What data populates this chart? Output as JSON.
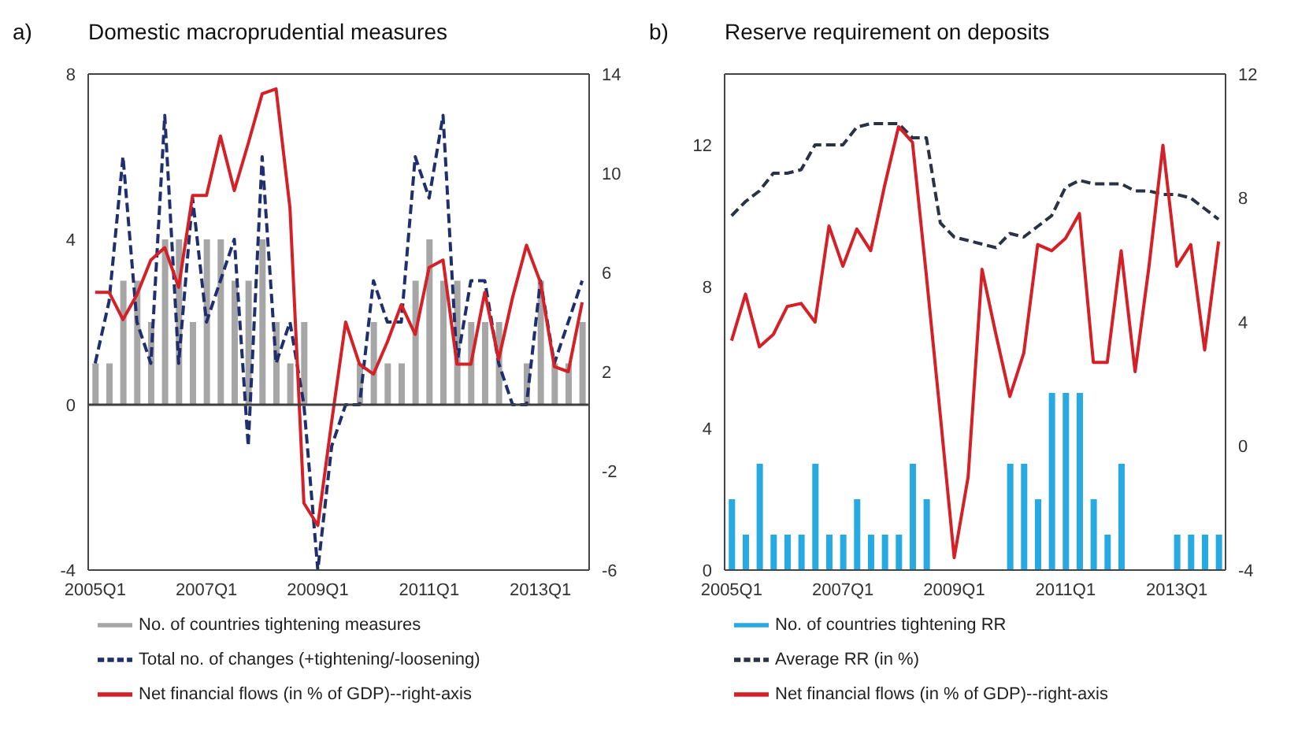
{
  "chart_data": [
    {
      "type": "bar",
      "title": "Domestic macroprudential measures",
      "annotations": [
        "a)"
      ],
      "categories": [
        "2005Q1",
        null,
        null,
        null,
        null,
        null,
        null,
        null,
        "2007Q1",
        null,
        null,
        null,
        null,
        null,
        null,
        null,
        "2009Q1",
        null,
        null,
        null,
        null,
        null,
        null,
        null,
        "2011Q1",
        null,
        null,
        null,
        null,
        null,
        null,
        null,
        "2013Q1",
        null,
        null,
        null
      ],
      "series": [
        {
          "name": "No. of countries tightening measures",
          "color": "#a6a6a6",
          "values": [
            1,
            1,
            3,
            3,
            2,
            4,
            4,
            2,
            4,
            4,
            3,
            3,
            4,
            2,
            1,
            2,
            0,
            0,
            0,
            1,
            2,
            1,
            1,
            3,
            4,
            3,
            3,
            2,
            2,
            2,
            0,
            1,
            3,
            1,
            1,
            2
          ]
        },
        {
          "name": "Total no. of changes (+tightening/-loosening)",
          "type": "line",
          "line_style": "dashed",
          "color": "#1f2f6e",
          "values": [
            1,
            2.5,
            6,
            2,
            1,
            7,
            1,
            5,
            2,
            3,
            4,
            -1,
            6,
            1,
            2,
            0,
            -4,
            -1,
            0,
            0,
            3,
            2,
            2,
            6,
            5,
            7,
            1,
            3,
            3,
            1,
            0,
            0,
            3,
            1,
            2,
            3
          ]
        },
        {
          "name": "Net financial flows (in % of GDP)--right-axis",
          "type": "line",
          "axis": "y2",
          "color": "#d42027",
          "values": [
            5.2,
            5.2,
            4.1,
            5.1,
            6.5,
            7,
            5.4,
            9.1,
            9.1,
            11.5,
            9.3,
            11.2,
            13.2,
            13.4,
            8.6,
            -3.3,
            -4.2,
            0,
            4,
            2.3,
            1.9,
            3.2,
            4.7,
            3.5,
            6.2,
            6.5,
            2.3,
            2.3,
            5.2,
            2.5,
            5,
            7.1,
            5.6,
            2.2,
            2,
            4.8
          ]
        }
      ],
      "ylim": [
        -4,
        8
      ],
      "yticks": [
        -4,
        0,
        4,
        8
      ],
      "y2lim": [
        -6,
        14
      ],
      "y2ticks": [
        -6,
        -2,
        2,
        6,
        10,
        14
      ],
      "ref_lines": [
        {
          "axis": "y",
          "value": 0,
          "color": "#404040"
        }
      ],
      "marker": "none",
      "grid": false,
      "legend": "bottom"
    },
    {
      "type": "bar",
      "title": "Reserve requirement on deposits",
      "annotations": [
        "b)"
      ],
      "categories": [
        "2005Q1",
        null,
        null,
        null,
        null,
        null,
        null,
        null,
        "2007Q1",
        null,
        null,
        null,
        null,
        null,
        null,
        null,
        "2009Q1",
        null,
        null,
        null,
        null,
        null,
        null,
        null,
        "2011Q1",
        null,
        null,
        null,
        null,
        null,
        null,
        null,
        "2013Q1",
        null,
        null,
        null
      ],
      "series": [
        {
          "name": "No. of countries tightening RR",
          "color": "#27a9e1",
          "values": [
            2,
            1,
            3,
            1,
            1,
            1,
            3,
            1,
            1,
            2,
            1,
            1,
            1,
            3,
            2,
            0,
            0,
            0,
            0,
            0,
            3,
            3,
            2,
            5,
            5,
            5,
            2,
            1,
            3,
            0,
            0,
            0,
            1,
            1,
            1,
            1
          ]
        },
        {
          "name": "Average RR (in %)",
          "type": "line",
          "line_style": "dashed",
          "color": "#2b3245",
          "values": [
            10,
            10.4,
            10.7,
            11.2,
            11.2,
            11.3,
            12,
            12,
            12,
            12.5,
            12.6,
            12.6,
            12.6,
            12.2,
            12.2,
            9.8,
            9.4,
            9.3,
            9.2,
            9.1,
            9.5,
            9.4,
            9.7,
            10,
            10.8,
            11,
            10.9,
            10.9,
            10.9,
            10.7,
            10.7,
            10.6,
            10.6,
            10.5,
            10.2,
            9.9
          ]
        },
        {
          "name": "Net financial flows (in % of GDP)--right-axis",
          "type": "line",
          "axis": "y2",
          "color": "#d42027",
          "values": [
            3.4,
            4.9,
            3.2,
            3.6,
            4.5,
            4.6,
            4,
            7.1,
            5.8,
            7,
            6.3,
            8.4,
            10.3,
            9.8,
            5.5,
            1,
            -3.6,
            -1,
            5.7,
            3.6,
            1.6,
            3,
            6.5,
            6.3,
            6.7,
            7.5,
            2.7,
            2.7,
            6.3,
            2.4,
            5.8,
            9.7,
            5.8,
            6.5,
            3.1,
            6.6
          ]
        }
      ],
      "ylim": [
        0,
        14
      ],
      "yticks": [
        0,
        4,
        8,
        12
      ],
      "y2lim": [
        -4,
        12
      ],
      "y2ticks": [
        -4,
        0,
        4,
        8,
        12
      ],
      "marker": "none",
      "grid": false,
      "legend": "bottom"
    }
  ]
}
